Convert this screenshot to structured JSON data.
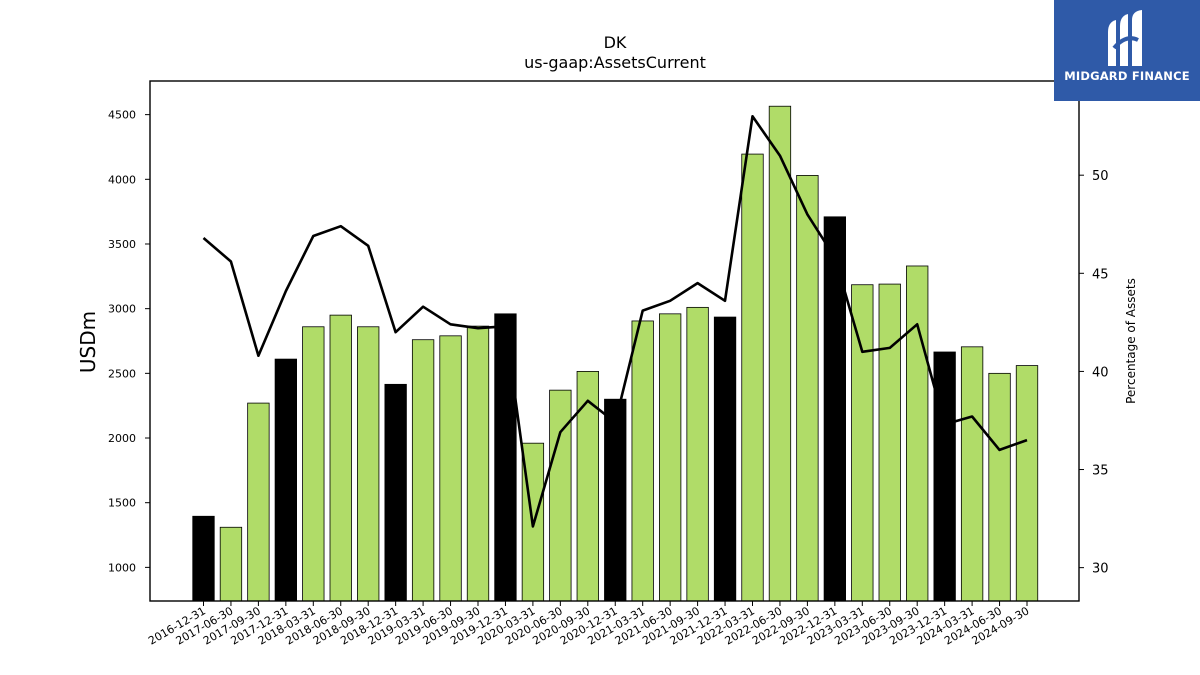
{
  "chart_data": {
    "type": "bar",
    "title": "DK",
    "subtitle": "us-gaap:AssetsCurrent",
    "ylabel": "USDm",
    "y2label": "Percentage of Assets",
    "ylim": [
      740,
      4760
    ],
    "y2lim": [
      28.3,
      54.8
    ],
    "yticks": [
      1000,
      1500,
      2000,
      2500,
      3000,
      3500,
      4000,
      4500
    ],
    "y2ticks": [
      30,
      35,
      40,
      45,
      50
    ],
    "categories": [
      "2016-12-31",
      "2017-06-30",
      "2017-09-30",
      "2017-12-31",
      "2018-03-31",
      "2018-06-30",
      "2018-09-30",
      "2018-12-31",
      "2019-03-31",
      "2019-06-30",
      "2019-09-30",
      "2019-12-31",
      "2020-03-31",
      "2020-06-30",
      "2020-09-30",
      "2020-12-31",
      "2021-03-31",
      "2021-06-30",
      "2021-09-30",
      "2021-12-31",
      "2022-03-31",
      "2022-06-30",
      "2022-09-30",
      "2022-12-31",
      "2023-03-31",
      "2023-06-30",
      "2023-09-30",
      "2023-12-31",
      "2024-03-31",
      "2024-06-30",
      "2024-09-30"
    ],
    "series": [
      {
        "kind": "bar",
        "values": [
          1395,
          1310,
          2270,
          2610,
          2860,
          2950,
          2860,
          2415,
          2760,
          2790,
          2865,
          2960,
          1960,
          2370,
          2515,
          2300,
          2905,
          2960,
          3010,
          2935,
          4195,
          4565,
          4030,
          3710,
          3185,
          3190,
          3330,
          2665,
          2705,
          2500,
          2560
        ],
        "annual": [
          true,
          false,
          false,
          true,
          false,
          false,
          false,
          true,
          false,
          false,
          false,
          true,
          false,
          false,
          false,
          true,
          false,
          false,
          false,
          true,
          false,
          false,
          false,
          true,
          false,
          false,
          false,
          true,
          false,
          false,
          false
        ]
      },
      {
        "kind": "line",
        "axis": "right",
        "values": [
          46.8,
          45.6,
          40.8,
          44.1,
          46.9,
          47.4,
          46.4,
          42.0,
          43.3,
          42.4,
          42.2,
          42.3,
          32.1,
          36.9,
          38.5,
          37.4,
          43.1,
          43.6,
          44.5,
          43.6,
          53.0,
          51.0,
          48.0,
          45.8,
          41.0,
          41.2,
          42.4,
          37.3,
          37.7,
          36.0,
          36.5
        ]
      }
    ],
    "colors": {
      "bar_quarter": "#b0dc68",
      "bar_annual": "#000000",
      "line": "#000000"
    }
  },
  "logo": {
    "text": "MIDGARD FINANCE"
  }
}
